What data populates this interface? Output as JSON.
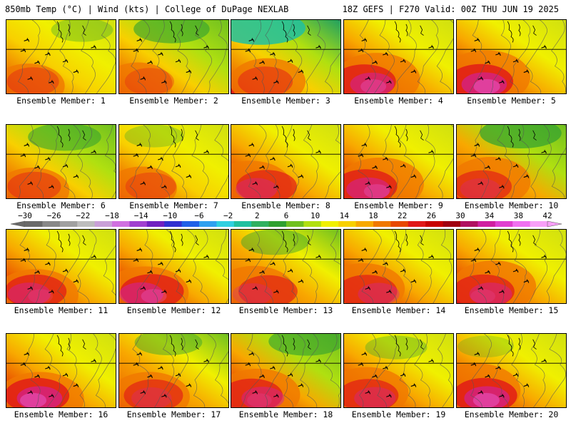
{
  "header": {
    "left": "850mb Temp (°C) | Wind (kts) | College of DuPage NEXLAB",
    "right": "18Z GEFS | F270 Valid: 00Z THU JUN 19 2025"
  },
  "members": [
    {
      "label": "Ensemble Member: 1",
      "intensity": 0.45,
      "cold": 0.35
    },
    {
      "label": "Ensemble Member: 2",
      "intensity": 0.35,
      "cold": 0.6
    },
    {
      "label": "Ensemble Member: 3",
      "intensity": 0.55,
      "cold": 0.85
    },
    {
      "label": "Ensemble Member: 4",
      "intensity": 0.85,
      "cold": 0.1
    },
    {
      "label": "Ensemble Member: 5",
      "intensity": 0.9,
      "cold": 0.05
    },
    {
      "label": "Ensemble Member: 6",
      "intensity": 0.5,
      "cold": 0.55
    },
    {
      "label": "Ensemble Member: 7",
      "intensity": 0.4,
      "cold": 0.3
    },
    {
      "label": "Ensemble Member: 8",
      "intensity": 0.75,
      "cold": 0.1
    },
    {
      "label": "Ensemble Member: 9",
      "intensity": 0.85,
      "cold": 0.15
    },
    {
      "label": "Ensemble Member: 10",
      "intensity": 0.7,
      "cold": 0.7
    },
    {
      "label": "Ensemble Member: 11",
      "intensity": 0.8,
      "cold": 0.05
    },
    {
      "label": "Ensemble Member: 12",
      "intensity": 0.85,
      "cold": 0.1
    },
    {
      "label": "Ensemble Member: 13",
      "intensity": 0.7,
      "cold": 0.45
    },
    {
      "label": "Ensemble Member: 14",
      "intensity": 0.75,
      "cold": 0.05
    },
    {
      "label": "Ensemble Member: 15",
      "intensity": 0.8,
      "cold": 0.1
    },
    {
      "label": "Ensemble Member: 16",
      "intensity": 0.9,
      "cold": 0.15
    },
    {
      "label": "Ensemble Member: 17",
      "intensity": 0.7,
      "cold": 0.45
    },
    {
      "label": "Ensemble Member: 18",
      "intensity": 0.8,
      "cold": 0.6
    },
    {
      "label": "Ensemble Member: 19",
      "intensity": 0.75,
      "cold": 0.35
    },
    {
      "label": "Ensemble Member: 20",
      "intensity": 0.9,
      "cold": 0.25
    }
  ],
  "colorbar": {
    "ticks": [
      "−30",
      "−26",
      "−22",
      "−18",
      "−14",
      "−10",
      "−6",
      "−2",
      "2",
      "6",
      "10",
      "14",
      "18",
      "22",
      "26",
      "30",
      "34",
      "38",
      "42"
    ],
    "colors": [
      "#6a6a6a",
      "#888888",
      "#a0a0a0",
      "#bdbdbd",
      "#c9a0d8",
      "#d070e0",
      "#a040d0",
      "#7020c0",
      "#3030d0",
      "#2060e8",
      "#30a0f0",
      "#30d0e0",
      "#20c0a0",
      "#30b060",
      "#30a030",
      "#70c020",
      "#b0e010",
      "#f0f000",
      "#f8d000",
      "#f8a800",
      "#f07800",
      "#e84800",
      "#e01818",
      "#c80000",
      "#a00010",
      "#b01060",
      "#d020a0",
      "#e040d0",
      "#f070f0",
      "#f8a0f8"
    ]
  }
}
